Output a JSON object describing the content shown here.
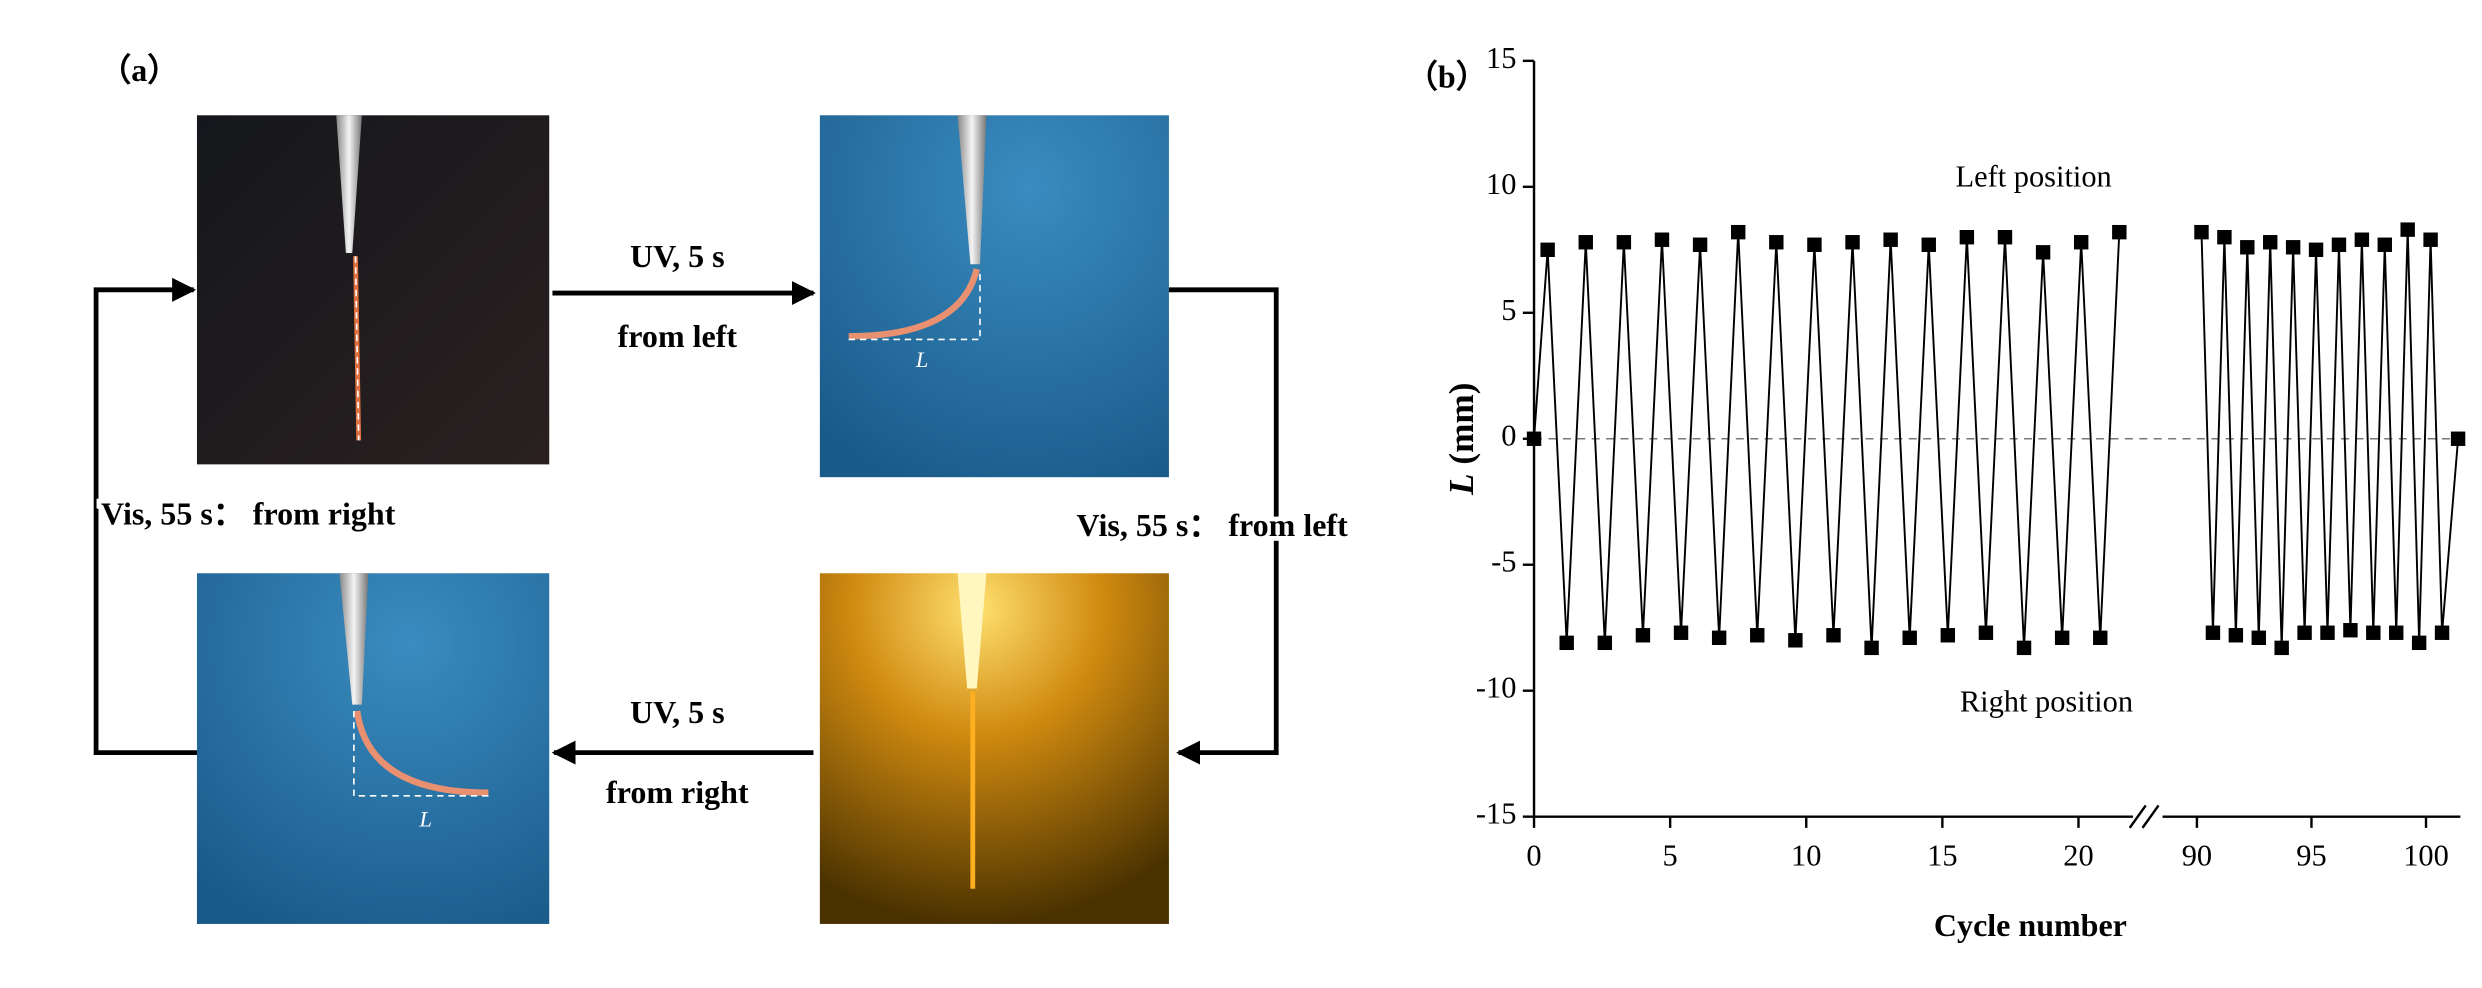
{
  "panel_a": {
    "label": "（a）",
    "arrows": [
      {
        "lines": [
          "UV, 5 s",
          "from left"
        ]
      },
      {
        "lines": [
          "Vis, 55 s：  from left"
        ]
      },
      {
        "lines": [
          "UV, 5 s",
          "from right"
        ]
      },
      {
        "lines": [
          "Vis, 55 s：  from right"
        ]
      }
    ],
    "photo_labels": [
      "L",
      "L"
    ]
  },
  "chart_data": {
    "type": "line",
    "panel_label": "（b）",
    "xlabel": "Cycle number",
    "ylabel": {
      "symbol": "L",
      "unit": "(mm)"
    },
    "annotations": [
      "Left position",
      "Right position"
    ],
    "color": "#000000",
    "marker": "square",
    "zero_line": true,
    "ylim": [
      -15,
      15
    ],
    "yticks": [
      -15,
      -10,
      -5,
      0,
      5,
      10,
      15
    ],
    "x_segments": [
      {
        "xlim": [
          0,
          22
        ],
        "xticks": [
          0,
          5,
          10,
          15,
          20
        ]
      },
      {
        "xlim": [
          88.5,
          101.5
        ],
        "xticks": [
          90,
          95,
          100
        ]
      }
    ],
    "x": [
      0,
      0.5,
      1.2,
      1.9,
      2.6,
      3.3,
      4.0,
      4.7,
      5.4,
      6.1,
      6.8,
      7.5,
      8.2,
      8.9,
      9.6,
      10.3,
      11.0,
      11.7,
      12.4,
      13.1,
      13.8,
      14.5,
      15.2,
      15.9,
      16.6,
      17.3,
      18.0,
      18.7,
      19.4,
      20.1,
      20.8,
      21.5,
      null,
      90.2,
      90.7,
      91.2,
      91.7,
      92.2,
      92.7,
      93.2,
      93.7,
      94.2,
      94.7,
      95.2,
      95.7,
      96.2,
      96.7,
      97.2,
      97.7,
      98.2,
      98.7,
      99.2,
      99.7,
      100.2,
      100.7,
      101.4
    ],
    "values": [
      0,
      7.5,
      -8.1,
      7.8,
      -8.1,
      7.8,
      -7.8,
      7.9,
      -7.7,
      7.7,
      -7.9,
      8.2,
      -7.8,
      7.8,
      -8.0,
      7.7,
      -7.8,
      7.8,
      -8.3,
      7.9,
      -7.9,
      7.7,
      -7.8,
      8.0,
      -7.7,
      8.0,
      -8.3,
      7.4,
      -7.9,
      7.8,
      -7.9,
      8.2,
      null,
      8.2,
      -7.7,
      8.0,
      -7.8,
      7.6,
      -7.9,
      7.8,
      -8.3,
      7.6,
      -7.7,
      7.5,
      -7.7,
      7.7,
      -7.6,
      7.9,
      -7.7,
      7.7,
      -7.7,
      8.3,
      -8.1,
      7.9,
      -7.7,
      0
    ]
  }
}
